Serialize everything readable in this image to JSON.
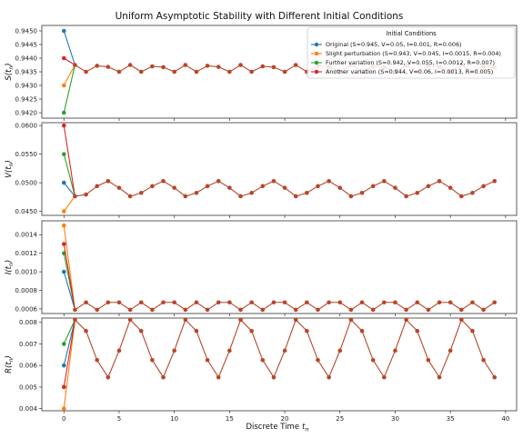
{
  "chart_data": {
    "type": "line",
    "title": "Uniform Asymptotic Stability with Different Initial Conditions",
    "xlabel": "Discrete Time",
    "xlabel_var": "t",
    "xlabel_sub": "n",
    "xlim": [
      -2,
      41
    ],
    "xticks": [
      0,
      5,
      10,
      15,
      20,
      25,
      30,
      35,
      40
    ],
    "xtick_labels": [
      "0",
      "5",
      "10",
      "15",
      "20",
      "25",
      "30",
      "35",
      "40"
    ],
    "legend": {
      "title": "Initial Conditions",
      "placement": "top-right",
      "entries": [
        "Original (S=0.945, V=0.05, I=0.001, R=0.006)",
        "Slight perturbation (S=0.943, V=0.045, I=0.0015, R=0.004)",
        "Further variation (S=0.942, V=0.055, I=0.0012, R=0.007)",
        "Another variation (S=0.944, V=0.06, I=0.0013, R=0.005)"
      ]
    },
    "colors": [
      "#1f77b4",
      "#ff7f0e",
      "#2ca02c",
      "#d62728"
    ],
    "common_color": "#b7462a",
    "grid": false,
    "x": [
      0,
      1,
      2,
      3,
      4,
      5,
      6,
      7,
      8,
      9,
      10,
      11,
      12,
      13,
      14,
      15,
      16,
      17,
      18,
      19,
      20,
      21,
      22,
      23,
      24,
      25,
      26,
      27,
      28,
      29,
      30,
      31,
      32,
      33,
      34,
      35,
      36,
      37,
      38,
      39
    ],
    "panels": [
      {
        "var": "S",
        "ylim": [
          0.9418,
          0.9452
        ],
        "yticks": [
          0.942,
          0.9425,
          0.943,
          0.9435,
          0.944,
          0.9445,
          0.945
        ],
        "ytick_labels": [
          "0.9420",
          "0.9425",
          "0.9430",
          "0.9435",
          "0.9440",
          "0.9445",
          "0.9450"
        ],
        "initial": [
          0.945,
          0.943,
          0.942,
          0.944
        ],
        "common": [
          0.94375,
          0.9435,
          0.94372,
          0.94368,
          0.9435,
          0.94375,
          0.9435,
          0.9437,
          0.94367,
          0.9435,
          0.94375,
          0.9435,
          0.94372,
          0.94368,
          0.9435,
          0.94375,
          0.9435,
          0.9437,
          0.94367,
          0.9435,
          0.94375,
          0.9435,
          0.94372,
          0.94368,
          0.9435,
          0.94375,
          0.9435,
          0.9437,
          0.94367,
          0.9435,
          0.94375,
          0.9435,
          0.94372,
          0.94368,
          0.9435,
          0.94375,
          0.9435,
          0.9437,
          0.94367
        ]
      },
      {
        "var": "V",
        "ylim": [
          0.0443,
          0.0605
        ],
        "yticks": [
          0.045,
          0.05,
          0.055,
          0.06
        ],
        "ytick_labels": [
          "0.0450",
          "0.0500",
          "0.0550",
          "0.0600"
        ],
        "initial": [
          0.05,
          0.045,
          0.055,
          0.06
        ],
        "common": [
          0.04764,
          0.04794,
          0.04941,
          0.05029,
          0.04912,
          0.04764,
          0.04823,
          0.04941,
          0.05029,
          0.04912,
          0.04764,
          0.04823,
          0.04941,
          0.05029,
          0.04912,
          0.04764,
          0.04823,
          0.04941,
          0.05029,
          0.04912,
          0.04764,
          0.04823,
          0.04941,
          0.05029,
          0.04912,
          0.04764,
          0.04823,
          0.04941,
          0.05029,
          0.04912,
          0.04764,
          0.04823,
          0.04941,
          0.05029,
          0.04912,
          0.04764,
          0.04823,
          0.04941,
          0.05029
        ]
      },
      {
        "var": "I",
        "ylim": [
          0.00055,
          0.00155
        ],
        "yticks": [
          0.0006,
          0.0008,
          0.001,
          0.0012,
          0.0014
        ],
        "ytick_labels": [
          "0.0006",
          "0.0008",
          "0.0010",
          "0.0012",
          "0.0014"
        ],
        "initial": [
          0.001,
          0.0015,
          0.0012,
          0.0013
        ],
        "common": [
          0.00059,
          0.00067,
          0.00059,
          0.00067,
          0.00067,
          0.00059,
          0.00067,
          0.00059,
          0.00067,
          0.00067,
          0.00059,
          0.00067,
          0.00059,
          0.00067,
          0.00067,
          0.00059,
          0.00067,
          0.00059,
          0.00067,
          0.00067,
          0.00059,
          0.00067,
          0.00059,
          0.00067,
          0.00067,
          0.00059,
          0.00067,
          0.00059,
          0.00067,
          0.00067,
          0.00059,
          0.00067,
          0.00059,
          0.00067,
          0.00067,
          0.00059,
          0.00067,
          0.00059,
          0.00067
        ]
      },
      {
        "var": "R",
        "ylim": [
          0.0039,
          0.0082
        ],
        "yticks": [
          0.004,
          0.005,
          0.006,
          0.007,
          0.008
        ],
        "ytick_labels": [
          "0.004",
          "0.005",
          "0.006",
          "0.007",
          "0.008"
        ],
        "initial": [
          0.006,
          0.004,
          0.007,
          0.005
        ],
        "common": [
          0.00812,
          0.0076,
          0.00625,
          0.00545,
          0.00669,
          0.00812,
          0.0076,
          0.00625,
          0.00545,
          0.00669,
          0.00812,
          0.0076,
          0.00625,
          0.00545,
          0.00669,
          0.00812,
          0.0076,
          0.00625,
          0.00545,
          0.00669,
          0.00812,
          0.0076,
          0.00625,
          0.00545,
          0.00669,
          0.00812,
          0.0076,
          0.00625,
          0.00545,
          0.00669,
          0.00812,
          0.0076,
          0.00625,
          0.00545,
          0.00669,
          0.00812,
          0.0076,
          0.00625,
          0.00545
        ]
      }
    ]
  }
}
